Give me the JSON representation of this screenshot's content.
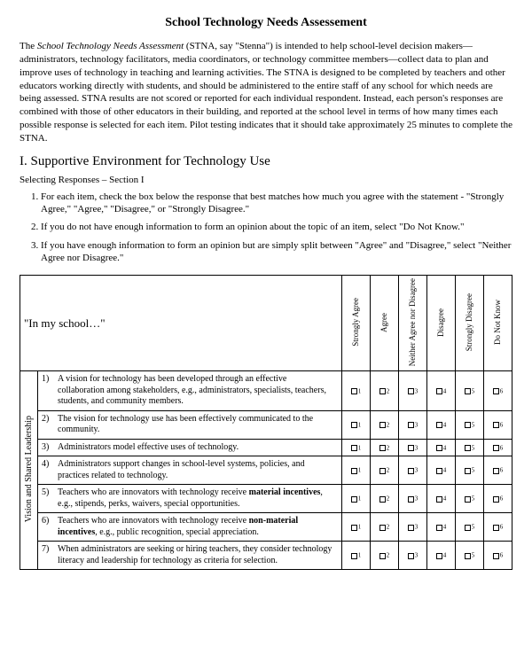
{
  "title": "School Technology Needs Assessement",
  "intro": "The <em>School Technology Needs Assessment</em> (STNA, say \"Stenna\") is intended to help school-level decision makers—administrators, technology facilitators, media coordinators, or technology committee members—collect data to plan and improve uses of technology in teaching and learning activities. The STNA is designed to be completed by teachers and other educators working directly with students, and should be administered to the entire staff of any school for which needs are being assessed. STNA results are not scored or reported for each individual respondent. Instead, each person's responses are combined with those of other educators in their building, and reported at the school level in terms of how many times each possible response is selected for each item. Pilot testing indicates that it should take approximately 25 minutes to complete the STNA.",
  "section_heading": "I. Supportive Environment for Technology Use",
  "section_sub": "Selecting Responses – Section I",
  "instructions": [
    "For each item, check the box below the response that best matches how much you agree with the statement - \"Strongly Agree,\" \"Agree,\" \"Disagree,\" or \"Strongly Disagree.\"",
    "If you do not have enough information to form an opinion about the topic of an item, select \"Do Not Know.\"",
    "If you have enough information to form an opinion but are simply split between \"Agree\" and \"Disagree,\" select \"Neither Agree nor Disagree.\""
  ],
  "table": {
    "prompt": "\"In my school…\"",
    "columns": [
      "Strongly Agree",
      "Agree",
      "Neither Agree nor Disagree",
      "Disagree",
      "Strongly Disagree",
      "Do Not Know"
    ],
    "category": "Vision and Shared Leadership",
    "items": [
      {
        "n": "1)",
        "text": "A vision for technology has been developed through an effective collaboration among stakeholders, e.g., administrators, specialists, teachers, students, and community members."
      },
      {
        "n": "2)",
        "text": "The vision for technology use has been effectively communicated to the community."
      },
      {
        "n": "3)",
        "text": "Administrators model effective uses of technology."
      },
      {
        "n": "4)",
        "text": "Administrators support changes in school-level systems, policies, and practices related to technology."
      },
      {
        "n": "5)",
        "text": "Teachers who are innovators with technology receive <strong>material incentives</strong>, e.g., stipends, perks, waivers, special opportunities."
      },
      {
        "n": "6)",
        "text": "Teachers who are innovators with technology receive <strong>non-material incentives</strong>, e.g., public recognition, special appreciation."
      },
      {
        "n": "7)",
        "text": "When administrators are seeking or hiring teachers, they consider technology literacy and leadership for technology as criteria for selection."
      }
    ]
  }
}
